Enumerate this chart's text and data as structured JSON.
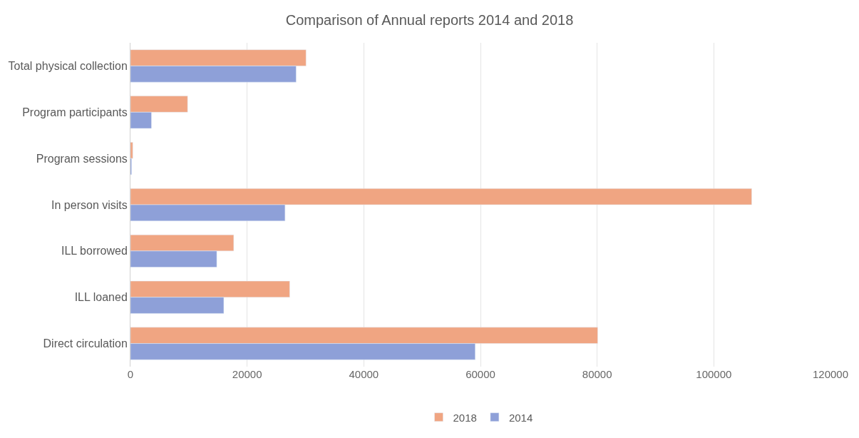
{
  "chart_data": {
    "type": "bar",
    "orientation": "horizontal",
    "title": "Comparison of Annual reports 2014 and 2018",
    "categories": [
      "Total physical collection",
      "Program participants",
      "Program sessions",
      "In person visits",
      "ILL borrowed",
      "ILL loaned",
      "Direct circulation"
    ],
    "series": [
      {
        "name": "2018",
        "color": "#f0a582",
        "values": [
          30100,
          9800,
          400,
          106500,
          17700,
          27300,
          80100
        ]
      },
      {
        "name": "2014",
        "color": "#8ea0d8",
        "values": [
          28400,
          3600,
          200,
          26500,
          14800,
          16000,
          59100
        ]
      }
    ],
    "xlim": [
      0,
      120000
    ],
    "xticks": [
      0,
      20000,
      40000,
      60000,
      80000,
      100000,
      120000
    ],
    "grid": "x",
    "legend": "bottom"
  }
}
